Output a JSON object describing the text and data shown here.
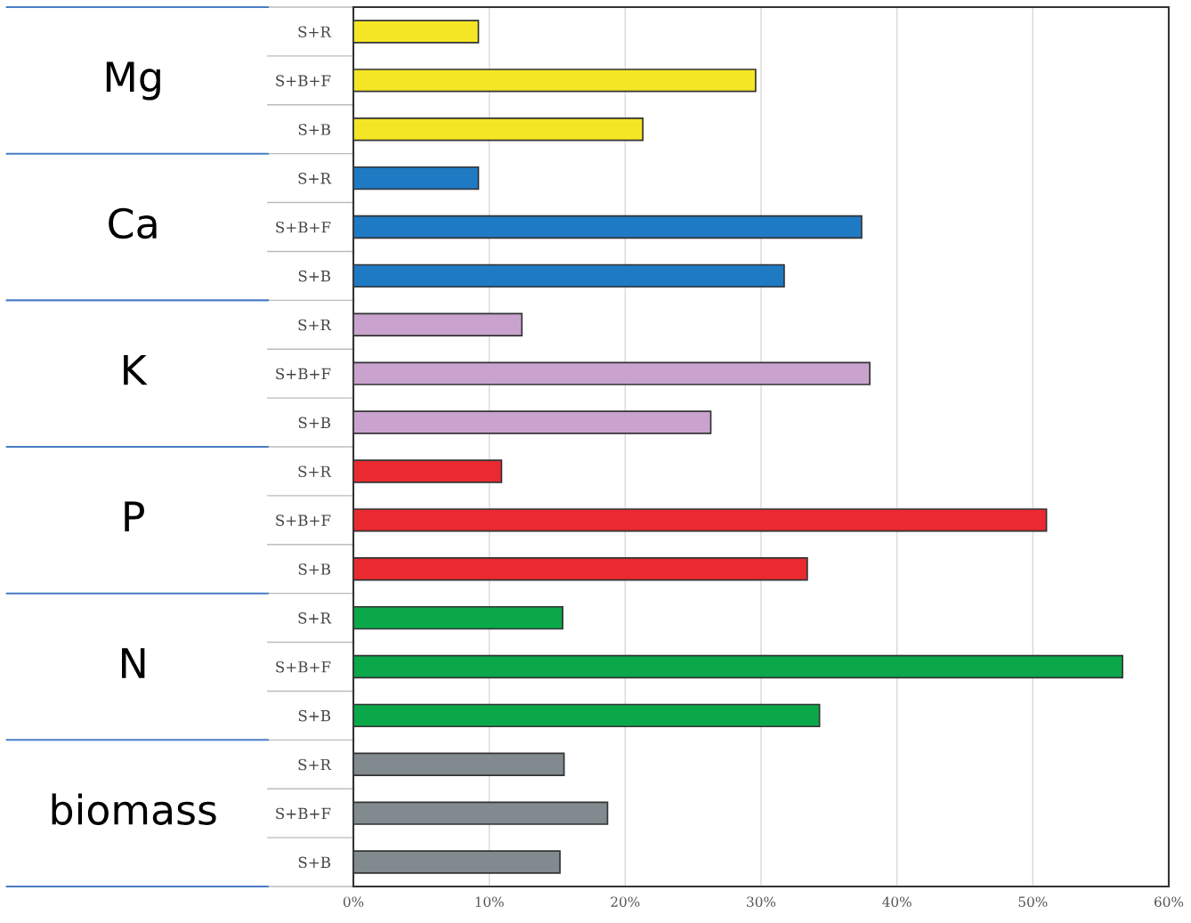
{
  "chart_data": {
    "type": "bar",
    "orientation": "horizontal",
    "categories": [
      "S+R",
      "S+B+F",
      "S+B",
      "S+R",
      "S+B+F",
      "S+B",
      "S+R",
      "S+B+F",
      "S+B",
      "S+R",
      "S+B+F",
      "S+B",
      "S+R",
      "S+B+F",
      "S+B",
      "S+R",
      "S+B+F",
      "S+B"
    ],
    "values": [
      9.2,
      29.6,
      21.3,
      9.2,
      37.4,
      31.7,
      12.4,
      38.0,
      26.3,
      10.9,
      51.0,
      33.4,
      15.4,
      56.6,
      34.3,
      15.5,
      18.7,
      15.2
    ],
    "colors": [
      "#f5e625",
      "#f5e625",
      "#f5e625",
      "#1f7ac4",
      "#1f7ac4",
      "#1f7ac4",
      "#c9a3cd",
      "#c9a3cd",
      "#c9a3cd",
      "#ea2a30",
      "#ea2a30",
      "#ea2a30",
      "#0ba84a",
      "#0ba84a",
      "#0ba84a",
      "#808a8f",
      "#808a8f",
      "#808a8f"
    ],
    "annotations": [
      "Mg",
      "Ca",
      "K",
      "P",
      "N",
      "biomass"
    ],
    "xlim": [
      0,
      60
    ],
    "xticks": [
      {
        "value": 0,
        "label": "0%"
      },
      {
        "value": 10,
        "label": "10%"
      },
      {
        "value": 20,
        "label": "20%"
      },
      {
        "value": 30,
        "label": "30%"
      },
      {
        "value": 40,
        "label": "40%"
      },
      {
        "value": 50,
        "label": "50%"
      },
      {
        "value": 60,
        "label": "60%"
      }
    ],
    "grid": "x",
    "legend": false
  }
}
